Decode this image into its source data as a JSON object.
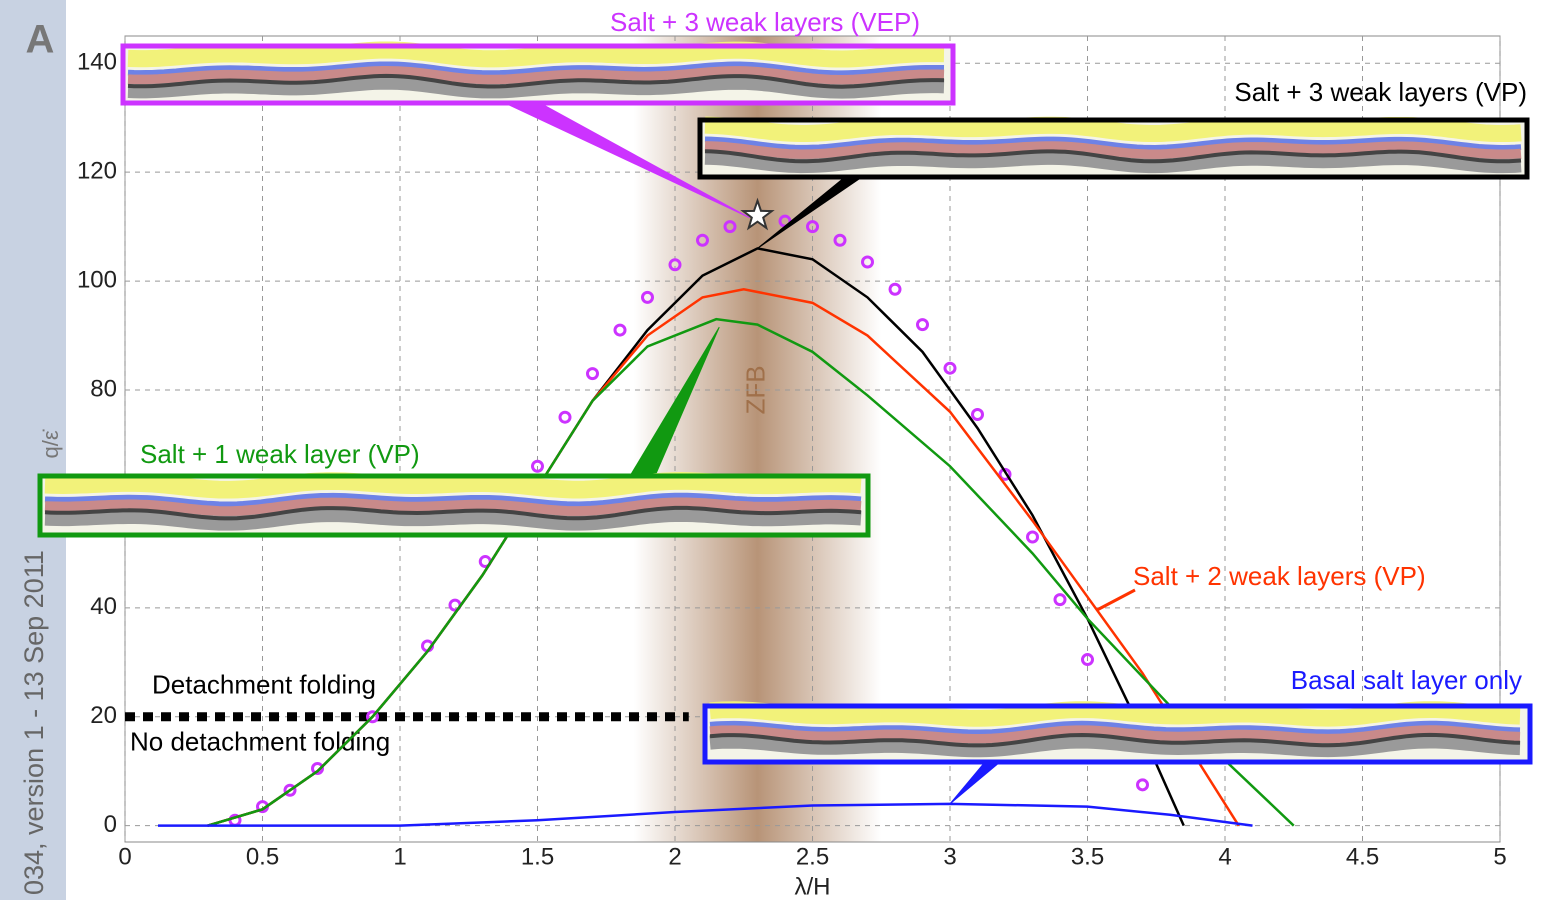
{
  "panel_label": "A",
  "side_note": "034, version 1 - 13 Sep 2011",
  "chart_data": {
    "type": "line",
    "xlabel": "λ/H",
    "ylabel": "q/ε̇",
    "xlim": [
      0,
      5
    ],
    "ylim": [
      -3,
      145
    ],
    "xticks": [
      0,
      0.5,
      1,
      1.5,
      2,
      2.5,
      3,
      3.5,
      4,
      4.5,
      5
    ],
    "yticks": [
      0,
      20,
      40,
      80,
      100,
      120,
      140
    ],
    "grid": true,
    "band": {
      "label": "ZFB",
      "x": [
        1.85,
        2.75
      ],
      "color": "#a0704a"
    },
    "threshold": {
      "y": 20,
      "x": [
        0,
        2.05
      ],
      "above_label": "Detachment folding",
      "below_label": "No detachment folding"
    },
    "highlight": {
      "x": 2.3,
      "y": 112
    },
    "series": [
      {
        "name": "Salt + 3 weak layers (VEP)",
        "color": "#cc33ff",
        "mode": "markers",
        "x": [
          0.4,
          0.5,
          0.6,
          0.7,
          0.9,
          1.1,
          1.2,
          1.31,
          1.5,
          1.6,
          1.7,
          1.8,
          1.9,
          2.0,
          2.1,
          2.2,
          2.4,
          2.5,
          2.6,
          2.7,
          2.8,
          2.9,
          3.0,
          3.1,
          3.2,
          3.3,
          3.4,
          3.5,
          3.7
        ],
        "values": [
          1,
          3.5,
          6.5,
          10.5,
          20,
          33,
          40.5,
          48.5,
          66,
          75,
          83,
          91,
          97,
          103,
          107.5,
          110,
          111,
          110,
          107.5,
          103.5,
          98.5,
          92,
          84,
          75.5,
          64.5,
          53,
          41.5,
          30.5,
          7.5
        ]
      },
      {
        "name": "Salt + 3 weak layers (VP)",
        "color": "#000000",
        "mode": "lines",
        "x": [
          0.3,
          0.5,
          0.7,
          0.9,
          1.1,
          1.3,
          1.5,
          1.7,
          1.9,
          2.1,
          2.3,
          2.5,
          2.7,
          2.9,
          3.1,
          3.3,
          3.5,
          3.7,
          3.85
        ],
        "values": [
          0,
          3,
          10,
          20,
          32,
          46,
          62,
          78,
          91,
          101,
          106,
          104,
          97,
          87,
          73,
          57,
          38,
          17,
          0
        ]
      },
      {
        "name": "Salt + 2 weak layers (VP)",
        "color": "#ff3300",
        "mode": "lines",
        "x": [
          0.3,
          0.5,
          0.7,
          0.9,
          1.1,
          1.3,
          1.5,
          1.7,
          1.9,
          2.1,
          2.25,
          2.5,
          2.7,
          3.0,
          3.3,
          3.5,
          3.7,
          3.9,
          4.05
        ],
        "values": [
          0,
          3,
          10,
          20,
          32,
          46,
          62,
          78,
          90,
          97,
          98.5,
          96,
          90,
          76,
          56,
          42,
          28,
          12,
          0
        ]
      },
      {
        "name": "Salt + 1 weak layer (VP)",
        "color": "#119911",
        "mode": "lines",
        "x": [
          0.3,
          0.5,
          0.7,
          0.9,
          1.1,
          1.3,
          1.5,
          1.7,
          1.9,
          2.15,
          2.3,
          2.5,
          2.7,
          3.0,
          3.3,
          3.5,
          3.8,
          4.0,
          4.25
        ],
        "values": [
          0,
          3,
          10,
          20,
          32,
          46,
          62,
          78,
          88,
          93,
          92,
          87,
          79,
          66,
          50,
          38,
          22,
          12,
          0
        ]
      },
      {
        "name": "Basal salt layer only",
        "color": "#1a1aff",
        "mode": "lines",
        "x": [
          0.12,
          1.0,
          1.5,
          2.0,
          2.5,
          3.0,
          3.5,
          3.8,
          4.1
        ],
        "values": [
          0,
          0,
          1,
          2.5,
          3.7,
          4,
          3.5,
          2,
          0
        ]
      }
    ]
  }
}
